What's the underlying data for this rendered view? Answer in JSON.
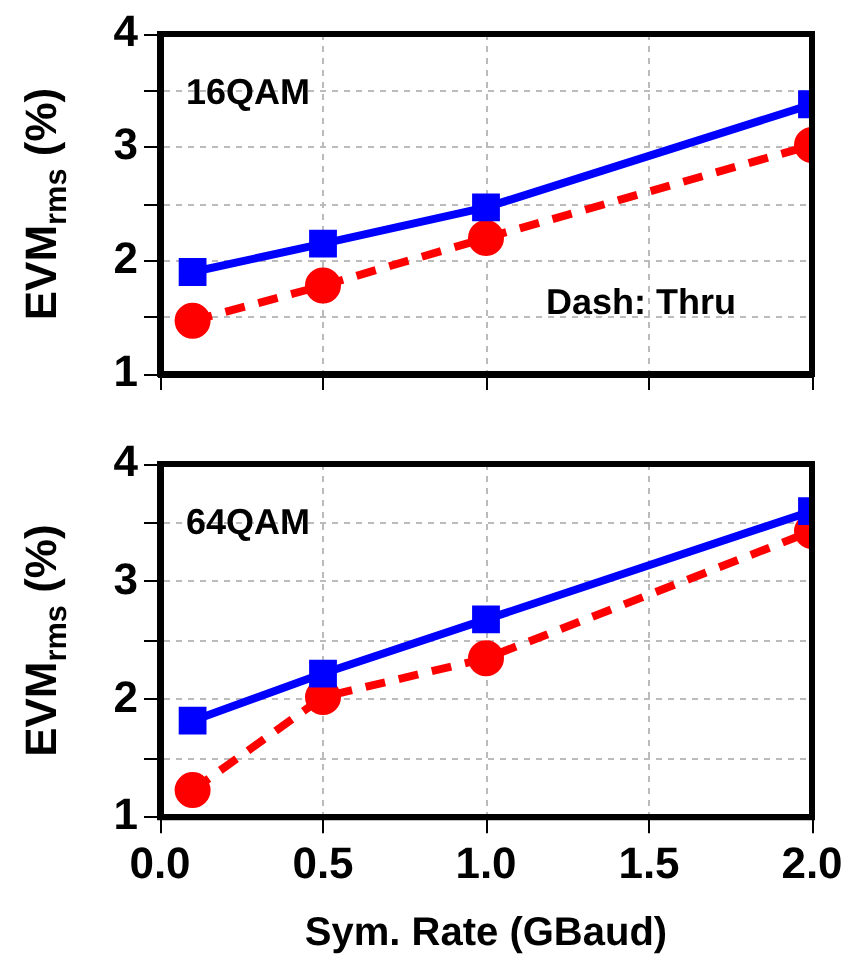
{
  "chart_data": [
    {
      "type": "line",
      "ylabel": "EVM$_{rms}$ (%)",
      "xlim": [
        0,
        2
      ],
      "xticks": [
        0,
        0.5,
        1,
        1.5,
        2
      ],
      "ylim": [
        1,
        4
      ],
      "yticks": [
        1,
        {
          "value": 1.5,
          "label": null
        },
        2,
        {
          "value": 2.5,
          "label": null
        },
        3,
        {
          "value": 3.5,
          "label": null
        },
        4
      ],
      "tick_labels": "y",
      "grid": true,
      "legend": false,
      "annotations": [
        "16QAM",
        "Dash: Thru"
      ],
      "series": [
        {
          "color": "#0000ff",
          "marker": "square",
          "line_style": "solid",
          "x": [
            0.1,
            0.5,
            1.0,
            2.0
          ],
          "values": [
            1.9,
            2.15,
            2.47,
            3.38
          ]
        },
        {
          "color": "#ff0000",
          "marker": "circle",
          "line_style": "dashed",
          "x": [
            0.1,
            0.5,
            1.0,
            2.0
          ],
          "values": [
            1.47,
            1.78,
            2.2,
            3.02
          ]
        }
      ]
    },
    {
      "type": "line",
      "ylabel": "EVM$_{rms}$ (%)",
      "xlabel": "Sym. Rate (GBaud)",
      "xlim": [
        0,
        2
      ],
      "xticks": [
        {
          "value": 0,
          "label": "0.0"
        },
        0.5,
        {
          "value": 1,
          "label": "1.0"
        },
        1.5,
        {
          "value": 2,
          "label": "2.0"
        }
      ],
      "ylim": [
        1,
        4
      ],
      "yticks": [
        1,
        {
          "value": 1.5,
          "label": null
        },
        2,
        {
          "value": 2.5,
          "label": null
        },
        3,
        {
          "value": 3.5,
          "label": null
        },
        4
      ],
      "grid": true,
      "legend": false,
      "annotations": [
        "64QAM"
      ],
      "series": [
        {
          "color": "#0000ff",
          "marker": "square",
          "line_style": "solid",
          "x": [
            0.1,
            0.5,
            1.0,
            2.0
          ],
          "values": [
            1.82,
            2.22,
            2.68,
            3.6
          ]
        },
        {
          "color": "#ff0000",
          "marker": "circle",
          "line_style": "dashed",
          "x": [
            0.1,
            0.5,
            1.0,
            2.0
          ],
          "values": [
            1.23,
            2.02,
            2.35,
            3.43
          ]
        }
      ]
    }
  ]
}
